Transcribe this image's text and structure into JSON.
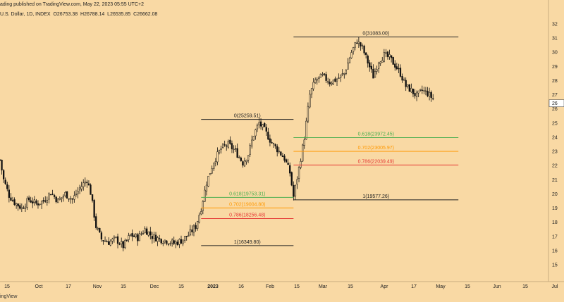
{
  "header": {
    "published": "ading published on TradingView.com, May 22, 2023 05:55 UTC+2",
    "symbol": "U.S. Dollar, 1D, INDEX",
    "open": "O26753.38",
    "high": "H26788.14",
    "low": "L26535.85",
    "close": "C26662.08"
  },
  "footer": {
    "brand": "ingView"
  },
  "colors": {
    "background": "#f9d9a4",
    "fib_0": "#222222",
    "fib_618": "#4caf50",
    "fib_702": "#ff9800",
    "fib_786": "#e53935",
    "fib_1": "#222222",
    "candle": "#111111"
  },
  "chart_data": {
    "type": "candlestick",
    "title": "U.S. Dollar, 1D, INDEX",
    "ylim": [
      14500,
      32500
    ],
    "xaxis_ticks": [
      "15",
      "Oct",
      "17",
      "Nov",
      "15",
      "Dec",
      "15",
      "2023",
      "16",
      "Feb",
      "15",
      "Mar",
      "15",
      "Apr",
      "17",
      "May",
      "15",
      "Jun",
      "15",
      "Jul"
    ],
    "yaxis_ticks": [
      "15",
      "16",
      "17",
      "18",
      "19",
      "20",
      "21",
      "22",
      "23",
      "24",
      "25",
      "26",
      "27",
      "28",
      "29",
      "30",
      "31",
      "32"
    ],
    "last_price_label": "26",
    "close_path": [
      {
        "t": 0,
        "v": 22400
      },
      {
        "t": 2,
        "v": 21000
      },
      {
        "t": 5,
        "v": 19900
      },
      {
        "t": 8,
        "v": 19400
      },
      {
        "t": 12,
        "v": 19000
      },
      {
        "t": 16,
        "v": 19600
      },
      {
        "t": 20,
        "v": 19300
      },
      {
        "t": 24,
        "v": 19500
      },
      {
        "t": 28,
        "v": 20100
      },
      {
        "t": 32,
        "v": 19500
      },
      {
        "t": 36,
        "v": 20000
      },
      {
        "t": 40,
        "v": 19600
      },
      {
        "t": 44,
        "v": 20400
      },
      {
        "t": 48,
        "v": 21000
      },
      {
        "t": 50,
        "v": 20100
      },
      {
        "t": 53,
        "v": 17700
      },
      {
        "t": 56,
        "v": 16800
      },
      {
        "t": 60,
        "v": 16600
      },
      {
        "t": 64,
        "v": 16800
      },
      {
        "t": 68,
        "v": 16300
      },
      {
        "t": 72,
        "v": 17100
      },
      {
        "t": 76,
        "v": 16900
      },
      {
        "t": 80,
        "v": 17500
      },
      {
        "t": 84,
        "v": 17000
      },
      {
        "t": 88,
        "v": 16800
      },
      {
        "t": 92,
        "v": 16700
      },
      {
        "t": 96,
        "v": 16500
      },
      {
        "t": 100,
        "v": 16700
      },
      {
        "t": 104,
        "v": 17100
      },
      {
        "t": 108,
        "v": 17700
      },
      {
        "t": 111,
        "v": 19000
      },
      {
        "t": 114,
        "v": 20800
      },
      {
        "t": 118,
        "v": 22300
      },
      {
        "t": 122,
        "v": 23200
      },
      {
        "t": 126,
        "v": 23500
      },
      {
        "t": 130,
        "v": 23000
      },
      {
        "t": 134,
        "v": 22200
      },
      {
        "t": 137,
        "v": 22800
      },
      {
        "t": 140,
        "v": 24200
      },
      {
        "t": 143,
        "v": 25000
      },
      {
        "t": 146,
        "v": 24500
      },
      {
        "t": 150,
        "v": 23600
      },
      {
        "t": 154,
        "v": 23000
      },
      {
        "t": 157,
        "v": 22500
      },
      {
        "t": 160,
        "v": 21500
      },
      {
        "t": 162,
        "v": 19800
      },
      {
        "t": 165,
        "v": 21800
      },
      {
        "t": 168,
        "v": 24000
      },
      {
        "t": 171,
        "v": 27000
      },
      {
        "t": 174,
        "v": 28000
      },
      {
        "t": 178,
        "v": 28300
      },
      {
        "t": 182,
        "v": 27900
      },
      {
        "t": 186,
        "v": 28100
      },
      {
        "t": 190,
        "v": 28500
      },
      {
        "t": 194,
        "v": 30000
      },
      {
        "t": 197,
        "v": 30800
      },
      {
        "t": 200,
        "v": 30300
      },
      {
        "t": 203,
        "v": 29300
      },
      {
        "t": 206,
        "v": 28300
      },
      {
        "t": 209,
        "v": 29400
      },
      {
        "t": 212,
        "v": 29800
      },
      {
        "t": 215,
        "v": 29600
      },
      {
        "t": 218,
        "v": 29100
      },
      {
        "t": 221,
        "v": 28500
      },
      {
        "t": 224,
        "v": 27600
      },
      {
        "t": 227,
        "v": 27300
      },
      {
        "t": 230,
        "v": 26900
      },
      {
        "t": 233,
        "v": 27300
      },
      {
        "t": 236,
        "v": 27100
      },
      {
        "t": 239,
        "v": 26700
      }
    ],
    "fib_sets": [
      {
        "name": "fib-set-1",
        "t_start": 111,
        "t_end": 162,
        "levels": [
          {
            "label": "0(25259.51)",
            "value": 25259.51,
            "color": "#222222"
          },
          {
            "label": "0.618(19753.31)",
            "value": 19753.31,
            "color": "#4caf50"
          },
          {
            "label": "0.702(19004.80)",
            "value": 19004.8,
            "color": "#ff9800"
          },
          {
            "label": "0.786(18256.48)",
            "value": 18256.48,
            "color": "#e53935"
          },
          {
            "label": "1(16349.80)",
            "value": 16349.8,
            "color": "#222222"
          }
        ]
      },
      {
        "name": "fib-set-2",
        "t_start": 162,
        "t_end": 253,
        "levels": [
          {
            "label": "0(31083.00)",
            "value": 31083.0,
            "color": "#222222"
          },
          {
            "label": "0.618(23972.45)",
            "value": 23972.45,
            "color": "#4caf50"
          },
          {
            "label": "0.702(23005.97)",
            "value": 23005.97,
            "color": "#ff9800"
          },
          {
            "label": "0.786(22039.49)",
            "value": 22039.49,
            "color": "#e53935"
          },
          {
            "label": "1(19577.26)",
            "value": 19577.26,
            "color": "#222222"
          }
        ]
      }
    ]
  }
}
